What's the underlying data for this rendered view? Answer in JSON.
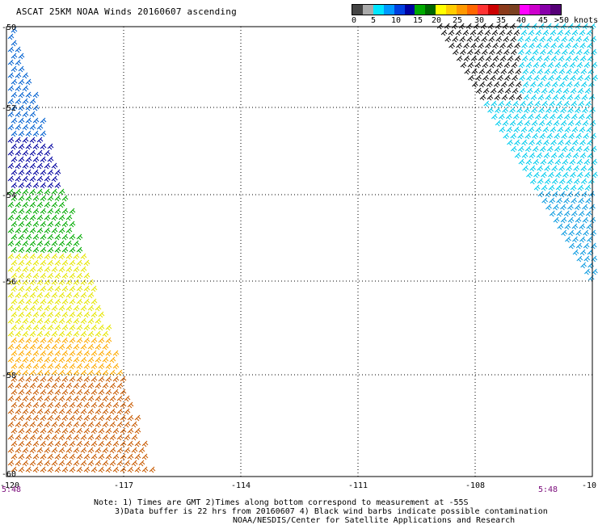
{
  "title": "ASCAT 25KM NOAA Winds 20160607 ascending",
  "colorbar": {
    "colors": [
      "#444444",
      "#aaaaaa",
      "#00e6ff",
      "#0099ff",
      "#0040e0",
      "#0000a0",
      "#00aa00",
      "#006600",
      "#ffff00",
      "#ffcc00",
      "#ff9900",
      "#ff6600",
      "#ff3333",
      "#cc0000",
      "#8b3a1a",
      "#7a4020",
      "#ff00ff",
      "#cc00cc",
      "#8800aa",
      "#550077"
    ],
    "labels": [
      "0",
      "5",
      "10",
      "15",
      "20",
      "25",
      "30",
      "35",
      "40",
      "45",
      ">50 knots"
    ]
  },
  "map": {
    "lon_ticks": [
      "-120",
      "-117",
      "-114",
      "-111",
      "-108",
      "-10"
    ],
    "lat_ticks": [
      "-50",
      "-52",
      "-54",
      "-56",
      "-58",
      "-60"
    ],
    "time_left": "5:48",
    "time_right": "5:48"
  },
  "notes": [
    "Note: 1) Times are GMT 2)Times along bottom correspond to measurement at -55S",
    "3)Data buffer is 22 hrs from 20160607 4) Black wind barbs indicate possible contamination",
    "NOAA/NESDIS/Center for Satellite Applications and Research"
  ]
}
